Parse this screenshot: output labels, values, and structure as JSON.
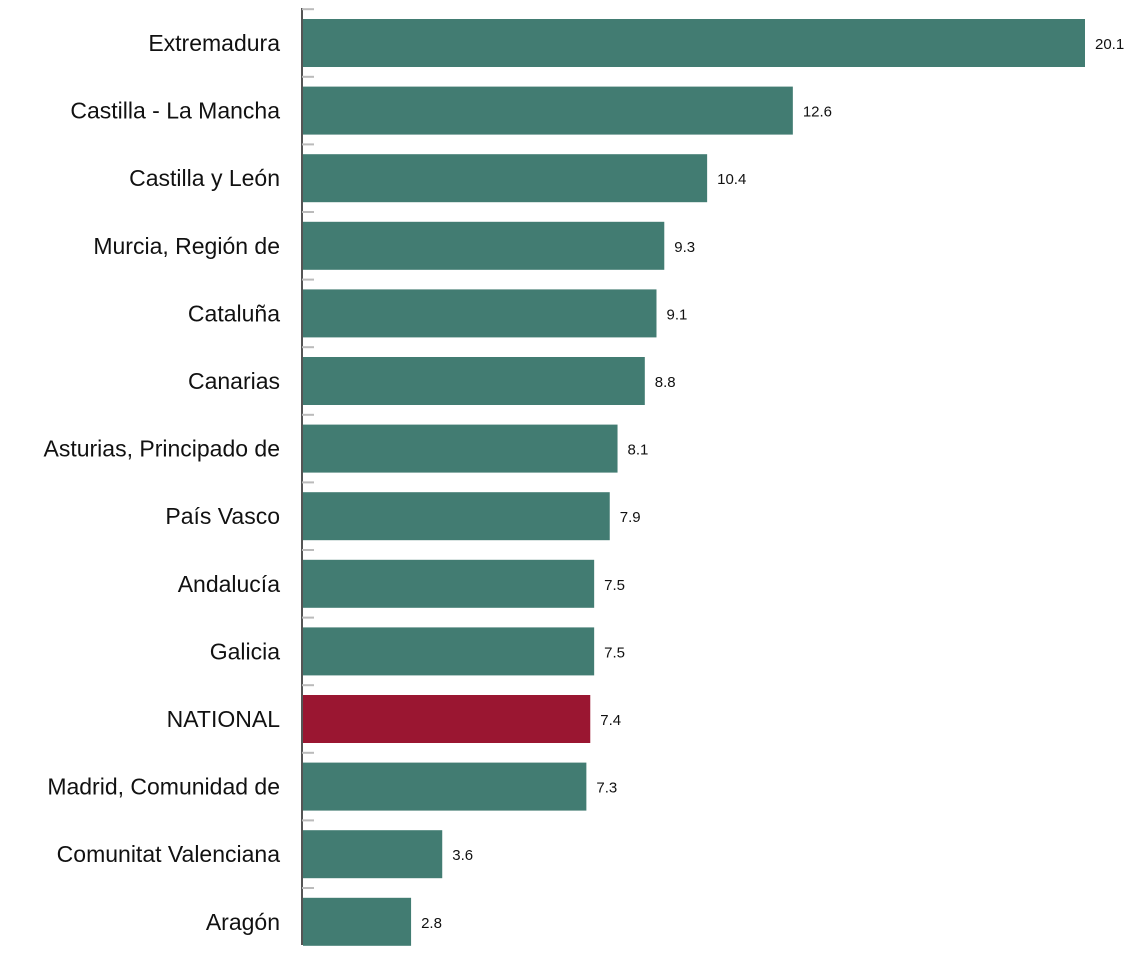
{
  "chart_data": {
    "type": "bar",
    "orientation": "horizontal",
    "title": "",
    "xlabel": "",
    "ylabel": "",
    "grid": false,
    "legend": "none",
    "xlim": [
      0,
      20.1
    ],
    "categories": [
      "Extremadura",
      "Castilla - La Mancha",
      "Castilla y León",
      "Murcia, Región de",
      "Cataluña",
      "Canarias",
      "Asturias, Principado de",
      "País Vasco",
      "Andalucía",
      "Galicia",
      "NATIONAL",
      "Madrid, Comunidad de",
      "Comunitat Valenciana",
      "Aragón"
    ],
    "values": [
      20.1,
      12.6,
      10.4,
      9.3,
      9.1,
      8.8,
      8.1,
      7.9,
      7.5,
      7.5,
      7.4,
      7.3,
      3.6,
      2.8
    ],
    "value_labels": [
      "20.1",
      "12.6",
      "10.4",
      "9.3",
      "9.1",
      "8.8",
      "8.1",
      "7.9",
      "7.5",
      "7.5",
      "7.4",
      "7.3",
      "3.6",
      "2.8"
    ],
    "colors": {
      "default": "#427c72",
      "highlight": "#9a1631"
    },
    "highlight_category": "NATIONAL"
  }
}
